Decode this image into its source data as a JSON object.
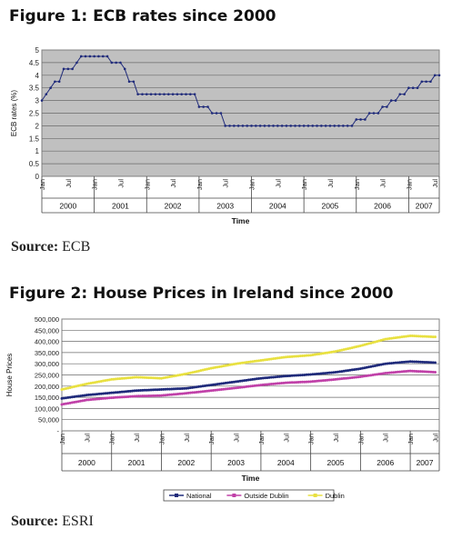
{
  "figure1": {
    "title": "Figure 1: ECB rates since 2000",
    "source_label": "Source:",
    "source_value": "ECB"
  },
  "figure2": {
    "title": "Figure 2: House Prices in Ireland since 2000",
    "source_label": "Source:",
    "source_value": "ESRI"
  },
  "chart_data": [
    {
      "type": "line",
      "title": "Figure 1: ECB rates since 2000",
      "xlabel": "Time",
      "ylabel": "ECB rates (%)",
      "ylim": [
        0,
        5
      ],
      "yticks": [
        "0",
        "0.5",
        "1",
        "1.5",
        "2",
        "2.5",
        "3",
        "3.5",
        "4",
        "4.5",
        "5"
      ],
      "xlim": [
        2000,
        2007.583
      ],
      "month_ticks": [
        "Jan",
        "Jul",
        "Jan",
        "Jul",
        "Jan",
        "Jul",
        "Jan",
        "Jul",
        "Jan",
        "Jul",
        "Jan",
        "Jul",
        "Jan",
        "Jul",
        "Jan",
        "Jul"
      ],
      "years": [
        "2000",
        "2001",
        "2002",
        "2003",
        "2004",
        "2005",
        "2006",
        "2007"
      ],
      "grid": true,
      "background": "#c0c0c0",
      "series": [
        {
          "color": "#1f2a7a",
          "x": [
            2000.0,
            2000.083,
            2000.167,
            2000.25,
            2000.333,
            2000.417,
            2000.5,
            2000.583,
            2000.667,
            2000.75,
            2000.833,
            2000.917,
            2001.0,
            2001.083,
            2001.167,
            2001.25,
            2001.333,
            2001.417,
            2001.5,
            2001.583,
            2001.667,
            2001.75,
            2001.833,
            2001.917,
            2002.0,
            2002.917,
            2003.0,
            2003.083,
            2003.167,
            2003.25,
            2003.333,
            2003.417,
            2003.5,
            2005.833,
            2005.917,
            2006.0,
            2006.083,
            2006.167,
            2006.25,
            2006.333,
            2006.417,
            2006.5,
            2006.583,
            2006.667,
            2006.75,
            2006.833,
            2006.917,
            2007.0,
            2007.083,
            2007.167,
            2007.25,
            2007.333,
            2007.417,
            2007.5,
            2007.583
          ],
          "y": [
            3.0,
            3.25,
            3.5,
            3.75,
            3.75,
            4.25,
            4.25,
            4.25,
            4.5,
            4.75,
            4.75,
            4.75,
            4.75,
            4.75,
            4.75,
            4.75,
            4.5,
            4.5,
            4.5,
            4.25,
            3.75,
            3.75,
            3.25,
            3.25,
            3.25,
            3.25,
            2.75,
            2.75,
            2.75,
            2.5,
            2.5,
            2.5,
            2.0,
            2.0,
            2.0,
            2.25,
            2.25,
            2.25,
            2.5,
            2.5,
            2.5,
            2.75,
            2.75,
            3.0,
            3.0,
            3.25,
            3.25,
            3.5,
            3.5,
            3.5,
            3.75,
            3.75,
            3.75,
            4.0,
            4.0
          ]
        }
      ]
    },
    {
      "type": "line",
      "title": "Figure 2: House Prices in Ireland since 2000",
      "xlabel": "Time",
      "ylabel": "House Prices",
      "ylim": [
        0,
        500000
      ],
      "yticks": [
        "-",
        "50,000",
        "100,000",
        "150,000",
        "200,000",
        "250,000",
        "300,000",
        "350,000",
        "400,000",
        "450,000",
        "500,000"
      ],
      "xlim": [
        2000,
        2007.583
      ],
      "month_ticks": [
        "Jan",
        "Jul",
        "Jan",
        "Jul",
        "Jan",
        "Jul",
        "Jan",
        "Jul",
        "Jan",
        "Jul",
        "Jan",
        "Jul",
        "Jan",
        "Jul",
        "Jan",
        "Jul"
      ],
      "years": [
        "2000",
        "2001",
        "2002",
        "2003",
        "2004",
        "2005",
        "2006",
        "2007"
      ],
      "grid": true,
      "legend": "bottom",
      "background": "#ffffff",
      "series": [
        {
          "name": "National",
          "color": "#1f2a7a",
          "x": [
            2000.0,
            2000.5,
            2001.0,
            2001.5,
            2002.0,
            2002.5,
            2003.0,
            2003.5,
            2004.0,
            2004.5,
            2005.0,
            2005.5,
            2006.0,
            2006.5,
            2007.0,
            2007.5
          ],
          "y": [
            145000,
            160000,
            170000,
            180000,
            185000,
            190000,
            205000,
            220000,
            235000,
            245000,
            252000,
            262000,
            278000,
            300000,
            310000,
            305000
          ]
        },
        {
          "name": "Outside Dublin",
          "color": "#c040a8",
          "x": [
            2000.0,
            2000.5,
            2001.0,
            2001.5,
            2002.0,
            2002.5,
            2003.0,
            2003.5,
            2004.0,
            2004.5,
            2005.0,
            2005.5,
            2006.0,
            2006.5,
            2007.0,
            2007.5
          ],
          "y": [
            118000,
            138000,
            148000,
            155000,
            158000,
            168000,
            180000,
            192000,
            205000,
            215000,
            220000,
            230000,
            242000,
            258000,
            268000,
            262000
          ]
        },
        {
          "name": "Dublin",
          "color": "#e8e040",
          "x": [
            2000.0,
            2000.5,
            2001.0,
            2001.5,
            2002.0,
            2002.5,
            2003.0,
            2003.5,
            2004.0,
            2004.5,
            2005.0,
            2005.5,
            2006.0,
            2006.5,
            2007.0,
            2007.5
          ],
          "y": [
            185000,
            210000,
            230000,
            240000,
            235000,
            255000,
            280000,
            300000,
            315000,
            330000,
            338000,
            355000,
            380000,
            410000,
            425000,
            420000
          ]
        }
      ]
    }
  ]
}
